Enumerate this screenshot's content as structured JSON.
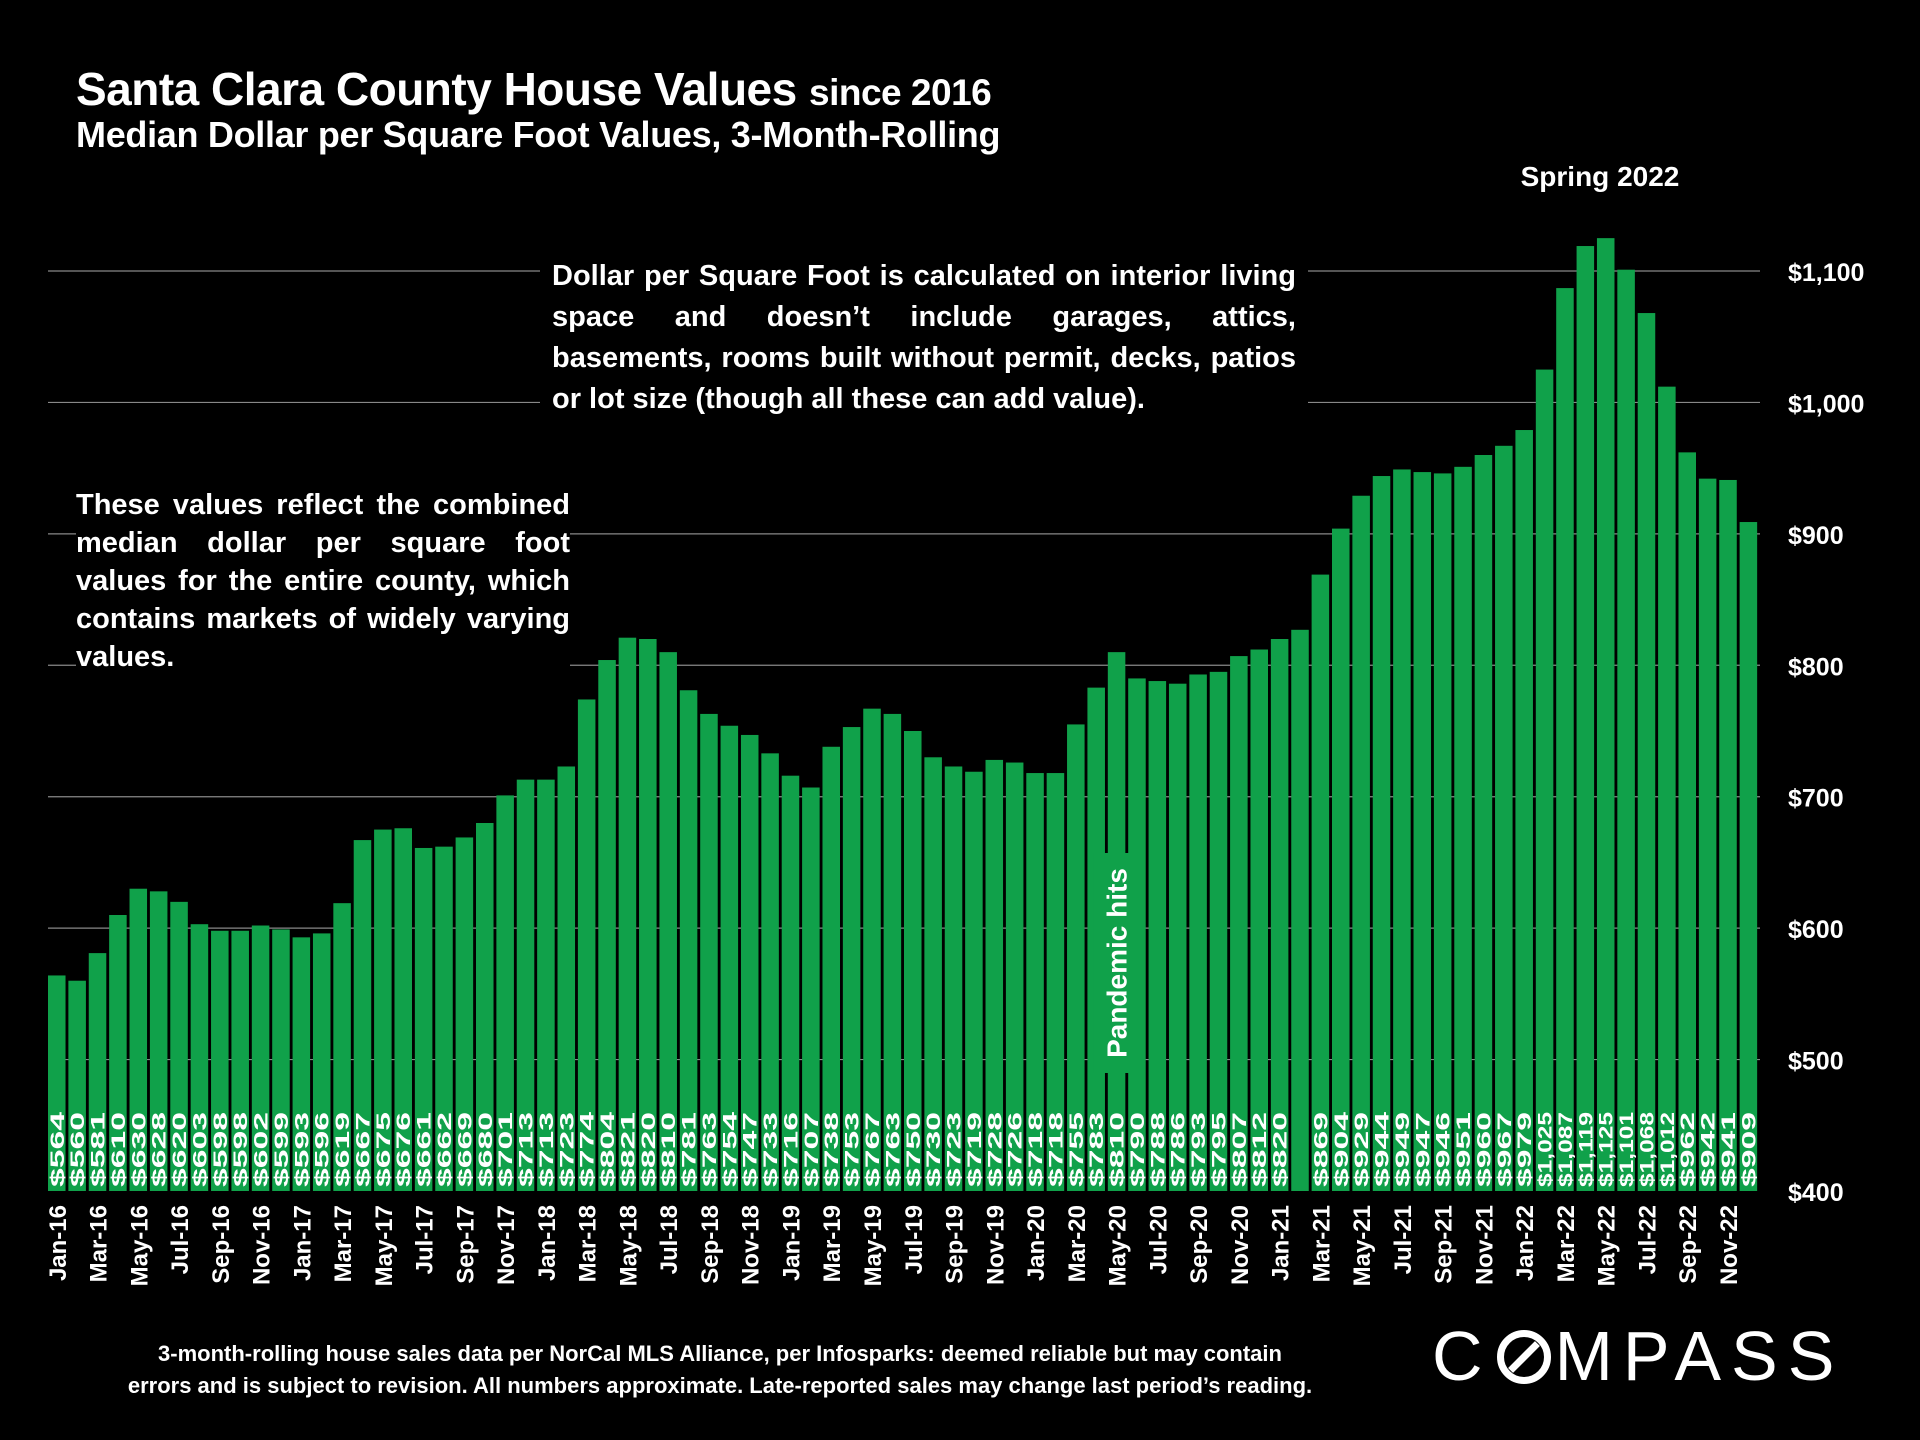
{
  "title": "Santa Clara County House Values",
  "title_suffix": "since 2016",
  "subtitle": "Median Dollar per Square Foot Values, 3-Month-Rolling",
  "note_dpsf": "Dollar per Square Foot is calculated on interior living space and doesn’t include garages, attics, basements, rooms built without permit, decks, patios or lot size (though all these can add value).",
  "note_county": "These values reflect the combined median dollar per square foot values for the entire county, which contains markets of widely varying values.",
  "annotation_spring": "Spring 2022",
  "annotation_pandemic": "Pandemic hits",
  "footer_line1": "3-month-rolling house sales data per NorCal MLS Alliance, per Infosparks:  deemed reliable but may contain",
  "footer_line2": "errors and is subject to revision. All numbers approximate. Late-reported sales may change last period’s reading.",
  "logo_text_left": "C",
  "logo_text_right": "MPASS",
  "colors": {
    "bar": "#10a14a",
    "gridline": "#888888",
    "label": "#ffffff",
    "background": "#000000"
  },
  "chart_data": {
    "type": "bar",
    "title": "Santa Clara County House Values since 2016",
    "subtitle": "Median Dollar per Square Foot Values, 3-Month-Rolling",
    "ylim": [
      400,
      1150
    ],
    "yaxis_position": "right",
    "yticks": [
      400,
      500,
      600,
      700,
      800,
      900,
      1000,
      1100
    ],
    "ytick_labels": [
      "$400",
      "$500",
      "$600",
      "$700",
      "$800",
      "$900",
      "$1,000",
      "$1,100"
    ],
    "categories": [
      "Jan-16",
      "Feb-16",
      "Mar-16",
      "Apr-16",
      "May-16",
      "Jun-16",
      "Jul-16",
      "Aug-16",
      "Sep-16",
      "Oct-16",
      "Nov-16",
      "Dec-16",
      "Jan-17",
      "Feb-17",
      "Mar-17",
      "Apr-17",
      "May-17",
      "Jun-17",
      "Jul-17",
      "Aug-17",
      "Sep-17",
      "Oct-17",
      "Nov-17",
      "Dec-17",
      "Jan-18",
      "Feb-18",
      "Mar-18",
      "Apr-18",
      "May-18",
      "Jun-18",
      "Jul-18",
      "Aug-18",
      "Sep-18",
      "Oct-18",
      "Nov-18",
      "Dec-18",
      "Jan-19",
      "Feb-19",
      "Mar-19",
      "Apr-19",
      "May-19",
      "Jun-19",
      "Jul-19",
      "Aug-19",
      "Sep-19",
      "Oct-19",
      "Nov-19",
      "Dec-19",
      "Jan-20",
      "Feb-20",
      "Mar-20",
      "Apr-20",
      "May-20",
      "Jun-20",
      "Jul-20",
      "Aug-20",
      "Sep-20",
      "Oct-20",
      "Nov-20",
      "Dec-20",
      "Jan-21",
      "Feb-21",
      "Mar-21",
      "Apr-21",
      "May-21",
      "Jun-21",
      "Jul-21",
      "Aug-21",
      "Sep-21",
      "Oct-21",
      "Nov-21",
      "Dec-21",
      "Jan-22",
      "Feb-22",
      "Mar-22",
      "Apr-22",
      "May-22",
      "Jun-22",
      "Jul-22",
      "Aug-22",
      "Sep-22",
      "Oct-22",
      "Nov-22",
      "Dec-22"
    ],
    "xtick_labels": [
      "Jan-16",
      "",
      "Mar-16",
      "",
      "May-16",
      "",
      "Jul-16",
      "",
      "Sep-16",
      "",
      "Nov-16",
      "",
      "Jan-17",
      "",
      "Mar-17",
      "",
      "May-17",
      "",
      "Jul-17",
      "",
      "Sep-17",
      "",
      "Nov-17",
      "",
      "Jan-18",
      "",
      "Mar-18",
      "",
      "May-18",
      "",
      "Jul-18",
      "",
      "Sep-18",
      "",
      "Nov-18",
      "",
      "Jan-19",
      "",
      "Mar-19",
      "",
      "May-19",
      "",
      "Jul-19",
      "",
      "Sep-19",
      "",
      "Nov-19",
      "",
      "Jan-20",
      "",
      "Mar-20",
      "",
      "May-20",
      "",
      "Jul-20",
      "",
      "Sep-20",
      "",
      "Nov-20",
      "",
      "Jan-21",
      "",
      "Mar-21",
      "",
      "May-21",
      "",
      "Jul-21",
      "",
      "Sep-21",
      "",
      "Nov-21",
      "",
      "Jan-22",
      "",
      "Mar-22",
      "",
      "May-22",
      "",
      "Jul-22",
      "",
      "Sep-22",
      "",
      "Nov-22",
      ""
    ],
    "values": [
      564,
      560,
      581,
      610,
      630,
      628,
      620,
      603,
      598,
      598,
      602,
      599,
      593,
      596,
      619,
      667,
      675,
      676,
      661,
      662,
      669,
      680,
      701,
      713,
      713,
      723,
      774,
      804,
      821,
      820,
      810,
      781,
      763,
      754,
      747,
      733,
      716,
      707,
      738,
      753,
      767,
      763,
      750,
      730,
      723,
      719,
      728,
      726,
      718,
      718,
      755,
      783,
      810,
      790,
      788,
      786,
      793,
      795,
      807,
      812,
      820,
      827,
      869,
      904,
      929,
      944,
      949,
      947,
      946,
      951,
      960,
      967,
      979,
      1025,
      1087,
      1119,
      1125,
      1101,
      1068,
      1012,
      962,
      942,
      941,
      909
    ],
    "value_labels": [
      "$564",
      "$560",
      "$581",
      "$610",
      "$630",
      "$628",
      "$620",
      "$603",
      "$598",
      "$598",
      "$602",
      "$599",
      "$593",
      "$596",
      "$619",
      "$667",
      "$675",
      "$676",
      "$661",
      "$662",
      "$669",
      "$680",
      "$701",
      "$713",
      "$713",
      "$723",
      "$774",
      "$804",
      "$821",
      "$820",
      "$810",
      "$781",
      "$763",
      "$754",
      "$747",
      "$733",
      "$716",
      "$707",
      "$738",
      "$753",
      "$767",
      "$763",
      "$750",
      "$730",
      "$723",
      "$719",
      "$728",
      "$726",
      "$718",
      "$718",
      "$755",
      "$783",
      "$810",
      "$790",
      "$788",
      "$786",
      "$793",
      "$795",
      "$807",
      "$812",
      "$820",
      "",
      "$869",
      "$904",
      "$929",
      "$944",
      "$949",
      "$947",
      "$946",
      "$951",
      "$960",
      "$967",
      "$979",
      "$1,025",
      "$1,087",
      "$1,119",
      "$1,125",
      "$1,101",
      "$1,068",
      "$1,012",
      "$962",
      "$942",
      "$941",
      "$909"
    ]
  }
}
